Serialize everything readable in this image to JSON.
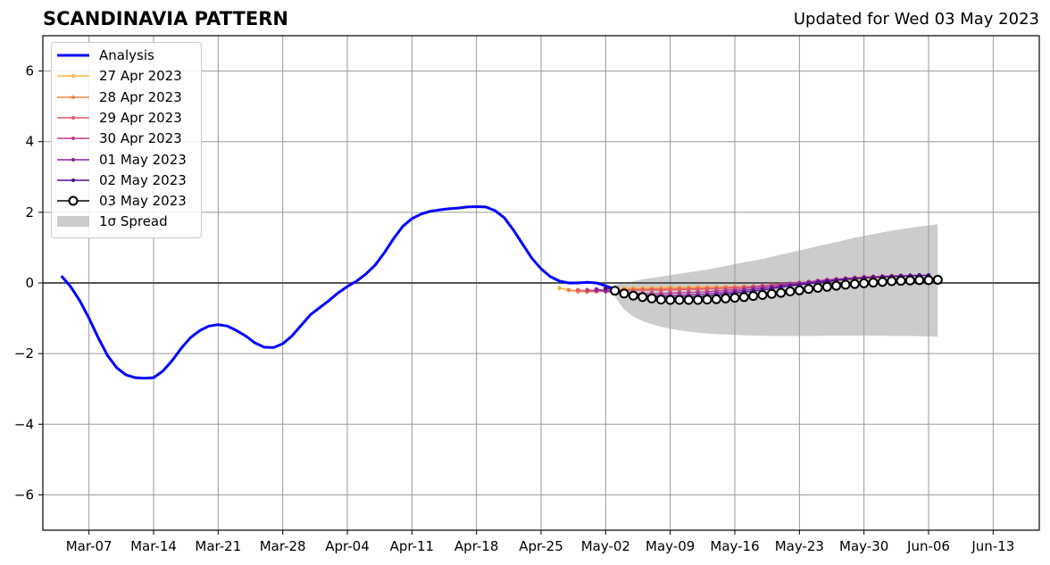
{
  "header": {
    "title": "SCANDINAVIA PATTERN",
    "updated": "Updated for Wed 03 May 2023"
  },
  "colors": {
    "analysis": "#0000ff",
    "spread": "#cccccc",
    "grid": "#999999",
    "zero_line": "#555555"
  },
  "legend": {
    "placement": "top-left",
    "items": [
      {
        "label": "Analysis",
        "color": "#0000ff",
        "kind": "thick-line"
      },
      {
        "label": "27 Apr 2023",
        "color": "#f9b53c",
        "kind": "marker-line"
      },
      {
        "label": "28 Apr 2023",
        "color": "#f0844b",
        "kind": "marker-line"
      },
      {
        "label": "29 Apr 2023",
        "color": "#e35c6a",
        "kind": "marker-line"
      },
      {
        "label": "30 Apr 2023",
        "color": "#b93e8c",
        "kind": "marker-line"
      },
      {
        "label": "01 May 2023",
        "color": "#8b23a3",
        "kind": "marker-line"
      },
      {
        "label": "02 May 2023",
        "color": "#4d0e8c",
        "kind": "marker-line"
      },
      {
        "label": "03 May 2023",
        "color": "#000000",
        "kind": "open-circle-line"
      },
      {
        "label": "1σ Spread",
        "color": "#cccccc",
        "kind": "patch"
      }
    ]
  },
  "chart_data": {
    "type": "line",
    "title": "SCANDINAVIA PATTERN",
    "xlabel": "",
    "ylabel": "",
    "xlim": [
      "2023-03-02",
      "2023-06-18"
    ],
    "ylim": [
      -7,
      7
    ],
    "grid": true,
    "x_ticks": [
      "Mar-07",
      "Mar-14",
      "Mar-21",
      "Mar-28",
      "Apr-04",
      "Apr-11",
      "Apr-18",
      "Apr-25",
      "May-02",
      "May-09",
      "May-16",
      "May-23",
      "May-30",
      "Jun-06",
      "Jun-13"
    ],
    "y_ticks": [
      -6,
      -4,
      -2,
      0,
      2,
      4,
      6
    ],
    "series": [
      {
        "name": "Analysis",
        "start_date": "2023-03-04",
        "values": [
          0.2,
          -0.1,
          -0.5,
          -1.0,
          -1.55,
          -2.05,
          -2.4,
          -2.6,
          -2.68,
          -2.7,
          -2.68,
          -2.5,
          -2.2,
          -1.85,
          -1.55,
          -1.35,
          -1.22,
          -1.18,
          -1.22,
          -1.35,
          -1.5,
          -1.7,
          -1.82,
          -1.83,
          -1.72,
          -1.5,
          -1.2,
          -0.9,
          -0.7,
          -0.5,
          -0.28,
          -0.1,
          0.05,
          0.25,
          0.5,
          0.85,
          1.25,
          1.6,
          1.82,
          1.95,
          2.03,
          2.07,
          2.1,
          2.12,
          2.15,
          2.16,
          2.15,
          2.05,
          1.85,
          1.5,
          1.1,
          0.7,
          0.4,
          0.18,
          0.05,
          0.0,
          0.0,
          0.02,
          0.0,
          -0.08,
          -0.18,
          -0.25
        ]
      },
      {
        "name": "27 Apr 2023",
        "start_date": "2023-04-27",
        "values": [
          -0.15,
          -0.2,
          -0.22,
          -0.22,
          -0.2,
          -0.18,
          -0.17,
          -0.16,
          -0.15,
          -0.15,
          -0.14,
          -0.14,
          -0.13,
          -0.13,
          -0.13,
          -0.12,
          -0.12,
          -0.12,
          -0.11,
          -0.11,
          -0.1,
          -0.1,
          -0.09,
          -0.08,
          -0.06,
          -0.04,
          -0.02,
          0.0,
          0.02,
          0.04,
          0.06,
          0.08,
          0.1,
          0.12,
          0.14,
          0.15
        ]
      },
      {
        "name": "28 Apr 2023",
        "start_date": "2023-04-28",
        "values": [
          -0.2,
          -0.24,
          -0.25,
          -0.24,
          -0.22,
          -0.2,
          -0.19,
          -0.18,
          -0.18,
          -0.17,
          -0.17,
          -0.16,
          -0.16,
          -0.15,
          -0.15,
          -0.14,
          -0.14,
          -0.13,
          -0.12,
          -0.11,
          -0.1,
          -0.08,
          -0.06,
          -0.04,
          -0.02,
          0.0,
          0.02,
          0.05,
          0.08,
          0.1,
          0.12,
          0.14,
          0.16,
          0.17,
          0.18,
          0.19
        ]
      },
      {
        "name": "29 Apr 2023",
        "start_date": "2023-04-29",
        "values": [
          -0.2,
          -0.22,
          -0.23,
          -0.22,
          -0.22,
          -0.21,
          -0.21,
          -0.2,
          -0.2,
          -0.2,
          -0.19,
          -0.19,
          -0.18,
          -0.18,
          -0.17,
          -0.16,
          -0.15,
          -0.14,
          -0.12,
          -0.1,
          -0.08,
          -0.06,
          -0.04,
          -0.02,
          0.0,
          0.03,
          0.06,
          0.09,
          0.11,
          0.13,
          0.15,
          0.17,
          0.18,
          0.19,
          0.2,
          0.21
        ]
      },
      {
        "name": "30 Apr 2023",
        "start_date": "2023-04-30",
        "values": [
          -0.2,
          -0.22,
          -0.24,
          -0.26,
          -0.28,
          -0.29,
          -0.3,
          -0.3,
          -0.3,
          -0.29,
          -0.28,
          -0.27,
          -0.26,
          -0.25,
          -0.23,
          -0.21,
          -0.19,
          -0.16,
          -0.13,
          -0.1,
          -0.07,
          -0.04,
          -0.02,
          0.0,
          0.03,
          0.06,
          0.08,
          0.1,
          0.12,
          0.14,
          0.15,
          0.16,
          0.17,
          0.18,
          0.19,
          0.2
        ]
      },
      {
        "name": "01 May 2023",
        "start_date": "2023-05-01",
        "values": [
          -0.18,
          -0.22,
          -0.26,
          -0.3,
          -0.33,
          -0.35,
          -0.36,
          -0.36,
          -0.36,
          -0.35,
          -0.34,
          -0.33,
          -0.31,
          -0.29,
          -0.27,
          -0.24,
          -0.21,
          -0.18,
          -0.15,
          -0.12,
          -0.08,
          -0.05,
          -0.02,
          0.01,
          0.04,
          0.07,
          0.09,
          0.11,
          0.13,
          0.15,
          0.17,
          0.18,
          0.19,
          0.2,
          0.21,
          0.22
        ]
      },
      {
        "name": "02 May 2023",
        "start_date": "2023-05-02",
        "values": [
          -0.15,
          -0.2,
          -0.25,
          -0.3,
          -0.35,
          -0.38,
          -0.4,
          -0.41,
          -0.41,
          -0.4,
          -0.39,
          -0.37,
          -0.35,
          -0.32,
          -0.29,
          -0.26,
          -0.23,
          -0.2,
          -0.16,
          -0.12,
          -0.08,
          -0.05,
          -0.02,
          0.01,
          0.04,
          0.07,
          0.1,
          0.12,
          0.14,
          0.16,
          0.17,
          0.18,
          0.19,
          0.2,
          0.21,
          0.22
        ]
      },
      {
        "name": "03 May 2023",
        "start_date": "2023-05-03",
        "values": [
          -0.22,
          -0.3,
          -0.36,
          -0.4,
          -0.44,
          -0.47,
          -0.48,
          -0.48,
          -0.48,
          -0.48,
          -0.47,
          -0.46,
          -0.44,
          -0.42,
          -0.4,
          -0.37,
          -0.34,
          -0.31,
          -0.28,
          -0.24,
          -0.21,
          -0.17,
          -0.14,
          -0.11,
          -0.08,
          -0.05,
          -0.03,
          -0.01,
          0.01,
          0.03,
          0.05,
          0.06,
          0.07,
          0.08,
          0.08,
          0.09
        ]
      }
    ],
    "spread": {
      "name": "1σ Spread",
      "start_date": "2023-05-03",
      "upper": [
        -0.05,
        0.0,
        0.05,
        0.1,
        0.14,
        0.18,
        0.22,
        0.26,
        0.3,
        0.34,
        0.38,
        0.43,
        0.48,
        0.53,
        0.58,
        0.63,
        0.68,
        0.74,
        0.8,
        0.86,
        0.92,
        0.98,
        1.04,
        1.1,
        1.16,
        1.22,
        1.28,
        1.33,
        1.38,
        1.43,
        1.48,
        1.52,
        1.56,
        1.6,
        1.63,
        1.66
      ],
      "lower": [
        -0.4,
        -0.75,
        -0.95,
        -1.08,
        -1.17,
        -1.24,
        -1.3,
        -1.34,
        -1.38,
        -1.41,
        -1.43,
        -1.45,
        -1.46,
        -1.47,
        -1.48,
        -1.49,
        -1.49,
        -1.5,
        -1.5,
        -1.5,
        -1.5,
        -1.5,
        -1.5,
        -1.49,
        -1.49,
        -1.49,
        -1.49,
        -1.49,
        -1.49,
        -1.49,
        -1.5,
        -1.5,
        -1.5,
        -1.51,
        -1.51,
        -1.52
      ]
    }
  }
}
